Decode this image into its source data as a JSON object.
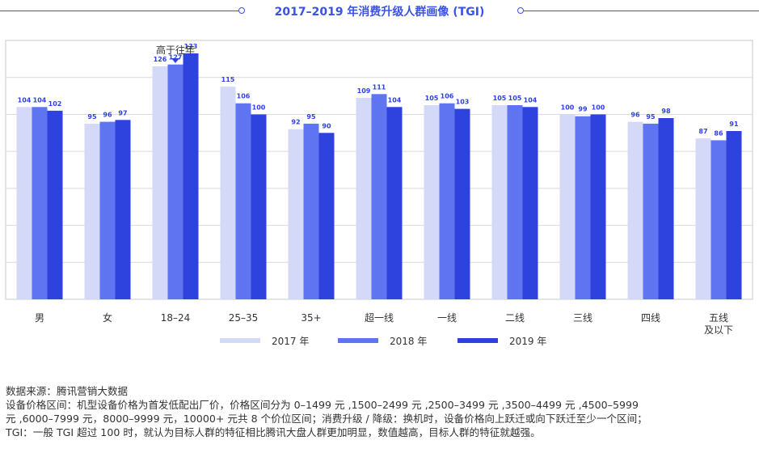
{
  "title": "2017–2019 年消费升级人群画像 (TGI)",
  "colors": {
    "accent": "#3b52e6",
    "s2017": "#d3d9f7",
    "s2018": "#5f74f0",
    "s2019": "#2e42dd"
  },
  "chart_data": {
    "type": "bar",
    "title": "2017–2019 年消费升级人群画像 (TGI)",
    "categories": [
      "男",
      "女",
      "18–24",
      "25–35",
      "35+",
      "超一线",
      "一线",
      "二线",
      "三线",
      "四线",
      "五线\n及以下"
    ],
    "series": [
      {
        "name": "2017 年",
        "values": [
          104,
          95,
          126,
          115,
          92,
          109,
          105,
          105,
          100,
          96,
          87
        ]
      },
      {
        "name": "2018 年",
        "values": [
          104,
          96,
          127,
          106,
          95,
          111,
          106,
          105,
          99,
          95,
          86
        ]
      },
      {
        "name": "2019 年",
        "values": [
          102,
          97,
          133,
          100,
          90,
          104,
          103,
          104,
          100,
          98,
          91
        ]
      }
    ],
    "ylim": [
      0,
      140
    ],
    "grid": true,
    "legend": "bottom",
    "annotation": {
      "text": "高于往年",
      "category": "18–24"
    }
  },
  "notes": [
    "数据来源：腾讯营销大数据",
    "设备价格区间：机型设备价格为首发低配出厂价，价格区间分为 0–1499 元 ,1500–2499 元 ,2500–3499 元 ,3500–4499 元 ,4500–5999",
    "元 ,6000–7999 元，8000–9999 元，10000+ 元共 8 个价位区间；消费升级 / 降级：换机时，设备价格向上跃迁或向下跃迁至少一个区间；",
    "TGI：一般 TGI 超过 100 时，就认为目标人群的特征相比腾讯大盘人群更加明显，数值越高，目标人群的特征就越强。"
  ]
}
